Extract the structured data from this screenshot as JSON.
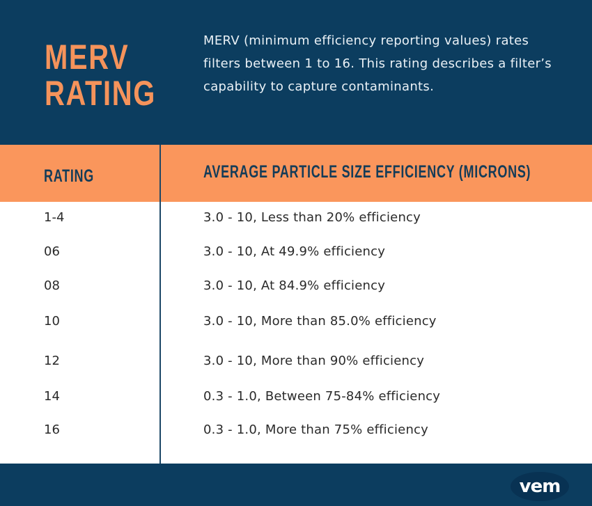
{
  "header": {
    "title_line1": "MERV",
    "title_line2": "RATING",
    "description": "MERV (minimum efficiency reporting values) rates filters between 1 to 16. This rating describes a filter’s capability to capture contaminants."
  },
  "table": {
    "columns": [
      "RATING",
      "AVERAGE PARTICLE SIZE EFFICIENCY (MICRONS)"
    ],
    "rows": [
      {
        "rating": "1-4",
        "value": "3.0 - 10, Less than 20% efficiency"
      },
      {
        "rating": "06",
        "value": "3.0 - 10, At 49.9% efficiency"
      },
      {
        "rating": "08",
        "value": "3.0 - 10, At 84.9% efficiency"
      },
      {
        "rating": "10",
        "value": "3.0 - 10, More than 85.0% efficiency"
      },
      {
        "rating": "12",
        "value": "3.0 - 10, More than 90% efficiency"
      },
      {
        "rating": "14",
        "value": "0.3 - 1.0, Between 75-84% efficiency"
      },
      {
        "rating": "16",
        "value": "0.3 - 1.0, More than 75% efficiency"
      }
    ]
  },
  "footer": {
    "logo_text": "VEM"
  },
  "colors": {
    "navy": "#0c3d5f",
    "orange": "#fa965c",
    "title_orange": "#f5935b"
  }
}
